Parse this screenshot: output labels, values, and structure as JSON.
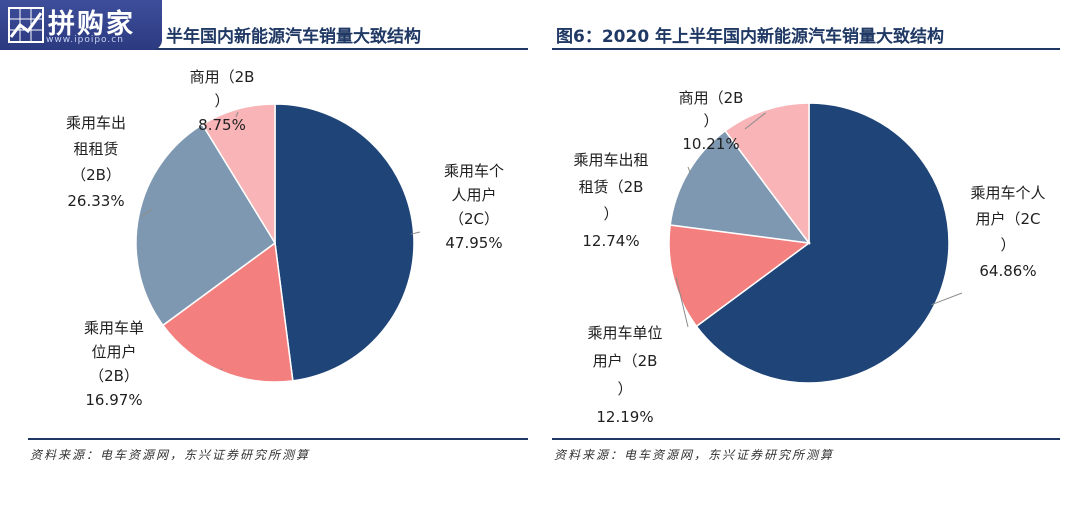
{
  "logo": {
    "name": "开拼购家",
    "brand_text": "拼购家",
    "url": "www.ipoipo.cn"
  },
  "colors": {
    "navy": "#1f4478",
    "salmon": "#f47f7f",
    "steel_blue": "#7e98b2",
    "pink": "#f8b4b7",
    "title": "#1f3864"
  },
  "left": {
    "title": "半年国内新能源汽车销量大致结构",
    "source": "资料来源：电车资源网，东兴证券研究所测算",
    "chart_data": {
      "type": "pie",
      "slices": [
        {
          "label_lines": [
            "乘用车个",
            "人用户",
            "（2C）"
          ],
          "percent_text": "47.95%",
          "value": 47.95,
          "color": "#1f4478"
        },
        {
          "label_lines": [
            "乘用车单",
            "位用户",
            "（2B）"
          ],
          "percent_text": "16.97%",
          "value": 16.97,
          "color": "#f47f7f"
        },
        {
          "label_lines": [
            "乘用车出",
            "租租赁",
            "（2B）"
          ],
          "percent_text": "26.33%",
          "value": 26.33,
          "color": "#7e98b2"
        },
        {
          "label_lines": [
            "商用（2B",
            "）"
          ],
          "percent_text": "8.75%",
          "value": 8.75,
          "color": "#f8b4b7"
        }
      ]
    }
  },
  "right": {
    "title": "图6：2020 年上半年国内新能源汽车销量大致结构",
    "source": "资料来源：电车资源网，东兴证券研究所测算",
    "chart_data": {
      "type": "pie",
      "slices": [
        {
          "label_lines": [
            "乘用车个人",
            "用户（2C",
            "）"
          ],
          "percent_text": "64.86%",
          "value": 64.86,
          "color": "#1f4478"
        },
        {
          "label_lines": [
            "乘用车单位",
            "用户（2B",
            "）"
          ],
          "percent_text": "12.19%",
          "value": 12.19,
          "color": "#f47f7f"
        },
        {
          "label_lines": [
            "乘用车出租",
            "租赁（2B",
            "）"
          ],
          "percent_text": "12.74%",
          "value": 12.74,
          "color": "#7e98b2"
        },
        {
          "label_lines": [
            "商用（2B",
            "）"
          ],
          "percent_text": "10.21%",
          "value": 10.21,
          "color": "#f8b4b7"
        }
      ]
    }
  }
}
